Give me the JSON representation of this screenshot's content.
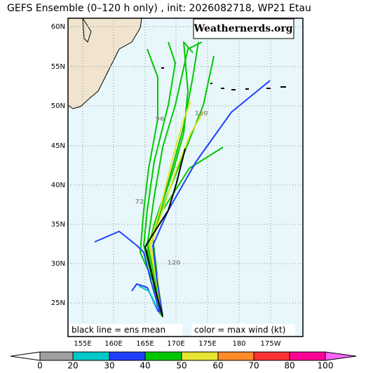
{
  "title": "GEFS Ensemble (0–120 h only) , init: 2026082718, WP21 Etau",
  "brand": "Weathernerds.org",
  "legend_left": "black line = ens mean",
  "legend_right": "color = max wind (kt)",
  "lat_labels": [
    "60N",
    "55N",
    "50N",
    "45N",
    "40N",
    "35N",
    "30N",
    "25N"
  ],
  "lon_labels": [
    "155E",
    "160E",
    "165E",
    "170E",
    "175E",
    "180",
    "175W"
  ],
  "hour_labels": [
    "120",
    "96",
    "72",
    "120"
  ],
  "ens_mean": {
    "lat": [
      23.2,
      26.5,
      29.2,
      32.1,
      34.0,
      36.7,
      40.1,
      44.5
    ],
    "lon": [
      167.8,
      166.7,
      165.9,
      165.0,
      166.5,
      168.7,
      170.0,
      171.4
    ]
  },
  "colorbar": {
    "ticks": [
      0,
      20,
      30,
      40,
      50,
      60,
      70,
      80,
      100
    ],
    "colors": [
      "#a0a0a0",
      "#00c8c8",
      "#2040ff",
      "#00c800",
      "#e6e632",
      "#ff8c28",
      "#ff3232",
      "#ff0096"
    ],
    "over_color": "#ff64ff"
  }
}
